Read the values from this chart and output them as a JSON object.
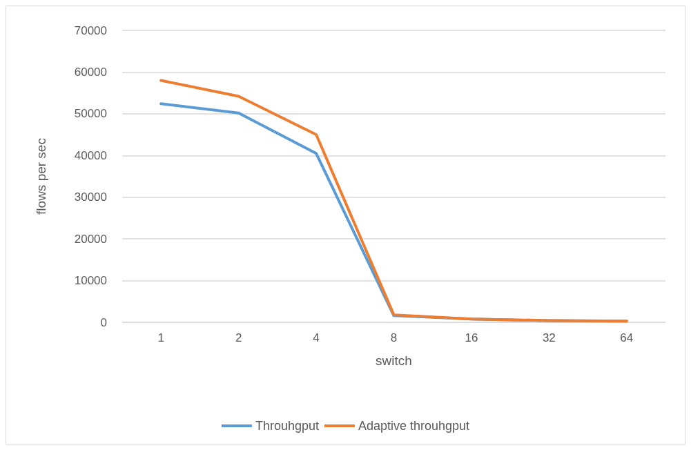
{
  "chart_data": {
    "type": "line",
    "xlabel": "switch",
    "ylabel": "flows per sec",
    "categories": [
      "1",
      "2",
      "4",
      "8",
      "16",
      "32",
      "64"
    ],
    "series": [
      {
        "name": "Throuhgput",
        "color": "#5b9bd5",
        "values": [
          52400,
          50200,
          40500,
          1600,
          800,
          400,
          300
        ]
      },
      {
        "name": "Adaptive throuhgput",
        "color": "#ed7d31",
        "values": [
          58000,
          54200,
          45000,
          1800,
          800,
          400,
          300
        ]
      }
    ],
    "ylim": [
      0,
      70000
    ],
    "yticks": [
      0,
      10000,
      20000,
      30000,
      40000,
      50000,
      60000,
      70000
    ],
    "grid": "y",
    "legend": "bottom",
    "marker": "none",
    "line_style": "solid"
  }
}
